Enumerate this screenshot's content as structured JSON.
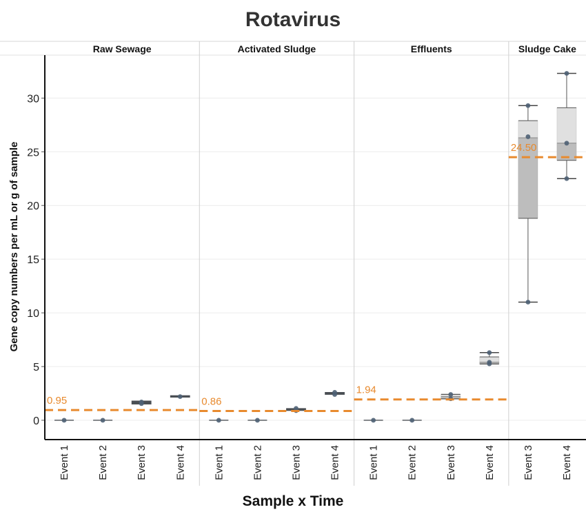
{
  "chart_data": {
    "type": "box",
    "title": "Rotavirus",
    "xlabel": "Sample x Time",
    "ylabel": "Gene copy numbers per mL or g of sample",
    "ylim": [
      -1.8,
      34
    ],
    "yticks": [
      0,
      5,
      10,
      15,
      20,
      25,
      30
    ],
    "grid": true,
    "reference_line_color": "#e88a2e",
    "box_colors": {
      "upper": "#e0e0e0",
      "lower": "#bdbdbd",
      "dark": "#4a4f54",
      "point": "#4e6174"
    },
    "panels": [
      {
        "name": "Raw Sewage",
        "mean": 0.95,
        "mean_label": "0.95",
        "categories": [
          "Event 1",
          "Event 2",
          "Event 3",
          "Event 4"
        ],
        "boxes": [
          {
            "min": 0,
            "q1": 0,
            "median": 0,
            "q3": 0,
            "max": 0,
            "points": [
              0
            ]
          },
          {
            "min": 0,
            "q1": 0,
            "median": 0,
            "q3": 0,
            "max": 0,
            "points": [
              0
            ]
          },
          {
            "min": 1.5,
            "q1": 1.5,
            "median": 1.65,
            "q3": 1.8,
            "max": 1.8,
            "points": [
              1.55,
              1.7
            ]
          },
          {
            "min": 2.15,
            "q1": 2.15,
            "median": 2.2,
            "q3": 2.3,
            "max": 2.3,
            "points": [
              2.2
            ]
          }
        ]
      },
      {
        "name": "Activated Sludge",
        "mean": 0.86,
        "mean_label": "0.86",
        "categories": [
          "Event 1",
          "Event 2",
          "Event 3",
          "Event 4"
        ],
        "boxes": [
          {
            "min": 0,
            "q1": 0,
            "median": 0,
            "q3": 0,
            "max": 0,
            "points": [
              0
            ]
          },
          {
            "min": 0,
            "q1": 0,
            "median": 0,
            "q3": 0,
            "max": 0,
            "points": [
              0
            ]
          },
          {
            "min": 0.9,
            "q1": 0.9,
            "median": 1.0,
            "q3": 1.1,
            "max": 1.1,
            "points": [
              0.9,
              1.1
            ]
          },
          {
            "min": 2.4,
            "q1": 2.4,
            "median": 2.5,
            "q3": 2.6,
            "max": 2.6,
            "points": [
              2.4,
              2.6
            ]
          }
        ]
      },
      {
        "name": "Effluents",
        "mean": 1.94,
        "mean_label": "1.94",
        "categories": [
          "Event 1",
          "Event 2",
          "Event 3",
          "Event 4"
        ],
        "boxes": [
          {
            "min": 0,
            "q1": 0,
            "median": 0,
            "q3": 0,
            "max": 0,
            "points": [
              0
            ]
          },
          {
            "min": 0,
            "q1": 0,
            "median": 0,
            "q3": 0,
            "max": 0,
            "points": [
              0
            ]
          },
          {
            "min": 2.0,
            "q1": 2.0,
            "median": 2.2,
            "q3": 2.4,
            "max": 2.4,
            "points": [
              2.0,
              2.4
            ]
          },
          {
            "min": 5.25,
            "q1": 5.25,
            "median": 5.4,
            "q3": 5.9,
            "max": 6.3,
            "points": [
              5.25,
              5.4,
              6.3
            ]
          }
        ]
      },
      {
        "name": "Sludge Cake",
        "mean": 24.5,
        "mean_label": "24.50",
        "categories": [
          "Event 3",
          "Event 4"
        ],
        "boxes": [
          {
            "min": 11.0,
            "q1": 18.8,
            "median": 26.3,
            "q3": 27.9,
            "max": 29.3,
            "points": [
              11.0,
              26.4,
              29.3
            ]
          },
          {
            "min": 22.5,
            "q1": 24.2,
            "median": 25.8,
            "q3": 29.1,
            "max": 32.3,
            "points": [
              22.5,
              25.8,
              32.3
            ]
          }
        ]
      }
    ]
  }
}
